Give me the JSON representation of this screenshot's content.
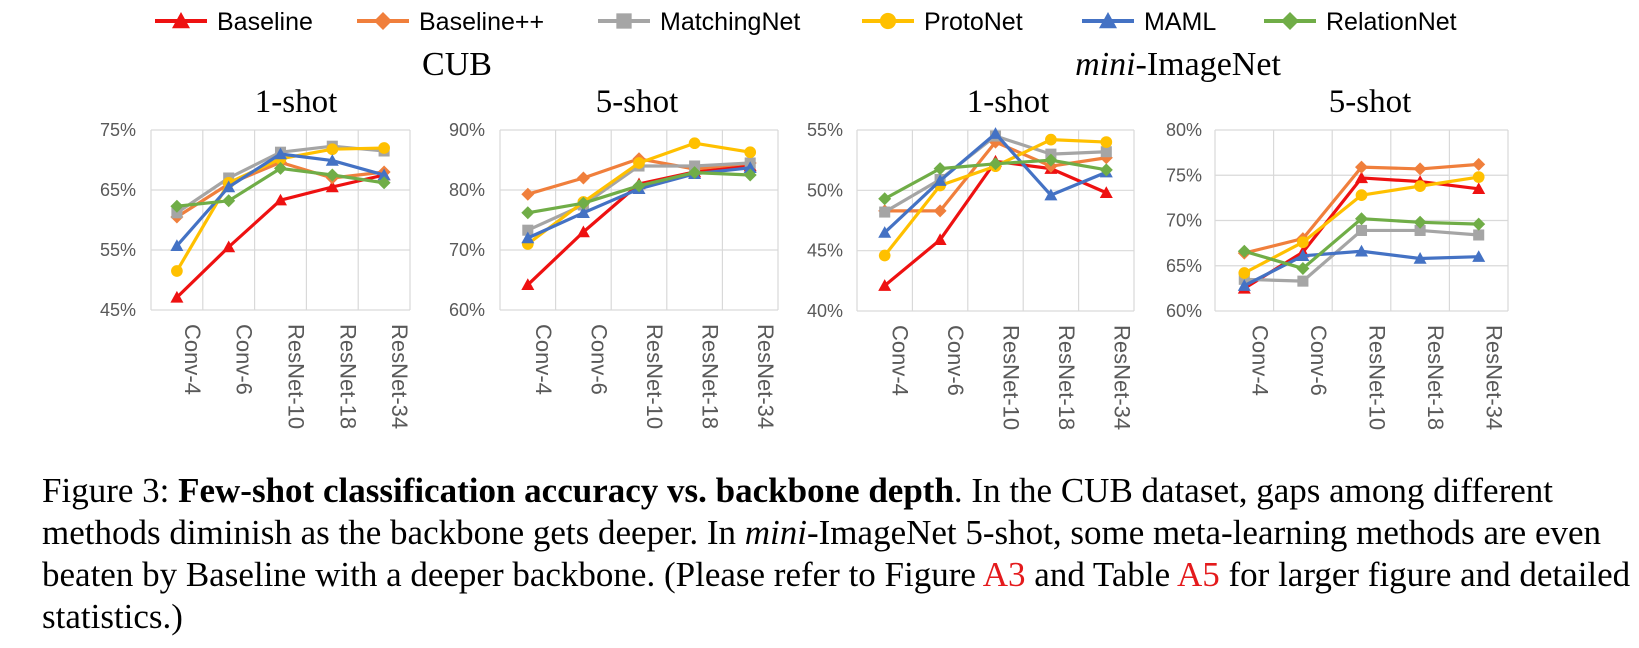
{
  "legend": [
    {
      "name": "Baseline",
      "color": "#ee1111",
      "marker": "triangle"
    },
    {
      "name": "Baseline++",
      "color": "#f07f3c",
      "marker": "diamond"
    },
    {
      "name": "MatchingNet",
      "color": "#a5a5a5",
      "marker": "square"
    },
    {
      "name": "ProtoNet",
      "color": "#ffc000",
      "marker": "circle"
    },
    {
      "name": "MAML",
      "color": "#4472c4",
      "marker": "triangle"
    },
    {
      "name": "RelationNet",
      "color": "#70ad47",
      "marker": "diamond"
    }
  ],
  "groups": [
    {
      "title_main": "CUB",
      "title_prefix": ""
    },
    {
      "title_main": "-ImageNet",
      "title_prefix": "mini"
    }
  ],
  "chart_data": [
    {
      "type": "line",
      "group": "CUB",
      "title": "1-shot",
      "categories": [
        "Conv-4",
        "Conv-6",
        "ResNet-10",
        "ResNet-18",
        "ResNet-34"
      ],
      "ylim": [
        45,
        75
      ],
      "yticks": [
        "45%",
        "55%",
        "65%",
        "75%"
      ],
      "ytick_values": [
        45,
        55,
        65,
        75
      ],
      "grid": true,
      "series": [
        {
          "name": "Baseline",
          "values": [
            47.1,
            55.5,
            63.3,
            65.5,
            67.5
          ]
        },
        {
          "name": "Baseline++",
          "values": [
            60.5,
            66.0,
            69.6,
            67.0,
            68.0
          ]
        },
        {
          "name": "MatchingNet",
          "values": [
            61.2,
            67.0,
            71.3,
            72.3,
            71.5
          ]
        },
        {
          "name": "ProtoNet",
          "values": [
            51.5,
            66.2,
            70.2,
            71.8,
            72.0
          ]
        },
        {
          "name": "MAML",
          "values": [
            55.7,
            65.5,
            71.0,
            69.9,
            67.5
          ]
        },
        {
          "name": "RelationNet",
          "values": [
            62.3,
            63.2,
            68.6,
            67.5,
            66.2
          ]
        }
      ]
    },
    {
      "type": "line",
      "group": "CUB",
      "title": "5-shot",
      "categories": [
        "Conv-4",
        "Conv-6",
        "ResNet-10",
        "ResNet-18",
        "ResNet-34"
      ],
      "ylim": [
        60,
        90
      ],
      "yticks": [
        "60%",
        "70%",
        "80%",
        "90%"
      ],
      "ytick_values": [
        60,
        70,
        80,
        90
      ],
      "grid": true,
      "series": [
        {
          "name": "Baseline",
          "values": [
            64.2,
            73.0,
            81.0,
            83.0,
            84.0
          ]
        },
        {
          "name": "Baseline++",
          "values": [
            79.3,
            82.0,
            85.2,
            83.5,
            84.5
          ]
        },
        {
          "name": "MatchingNet",
          "values": [
            73.3,
            77.5,
            84.0,
            84.0,
            84.5
          ]
        },
        {
          "name": "ProtoNet",
          "values": [
            71.0,
            78.0,
            84.5,
            87.8,
            86.3
          ]
        },
        {
          "name": "MAML",
          "values": [
            72.0,
            76.2,
            80.2,
            82.7,
            83.7
          ]
        },
        {
          "name": "RelationNet",
          "values": [
            76.2,
            77.8,
            80.7,
            82.9,
            82.5
          ]
        }
      ]
    },
    {
      "type": "line",
      "group": "mini-ImageNet",
      "title": "1-shot",
      "categories": [
        "Conv-4",
        "Conv-6",
        "ResNet-10",
        "ResNet-18",
        "ResNet-34"
      ],
      "ylim": [
        40,
        55
      ],
      "yticks": [
        "40%",
        "45%",
        "50%",
        "55%"
      ],
      "ytick_values": [
        40,
        45,
        50,
        55
      ],
      "grid": true,
      "series": [
        {
          "name": "Baseline",
          "values": [
            42.1,
            45.9,
            52.4,
            51.8,
            49.8
          ]
        },
        {
          "name": "Baseline++",
          "values": [
            48.3,
            48.3,
            54.0,
            52.0,
            52.7
          ]
        },
        {
          "name": "MatchingNet",
          "values": [
            48.2,
            50.9,
            54.5,
            53.0,
            53.2
          ]
        },
        {
          "name": "ProtoNet",
          "values": [
            44.6,
            50.4,
            52.0,
            54.2,
            54.0
          ]
        },
        {
          "name": "MAML",
          "values": [
            46.5,
            50.8,
            54.7,
            49.6,
            51.5
          ]
        },
        {
          "name": "RelationNet",
          "values": [
            49.3,
            51.8,
            52.2,
            52.5,
            51.7
          ]
        }
      ]
    },
    {
      "type": "line",
      "group": "mini-ImageNet",
      "title": "5-shot",
      "categories": [
        "Conv-4",
        "Conv-6",
        "ResNet-10",
        "ResNet-18",
        "ResNet-34"
      ],
      "ylim": [
        60,
        80
      ],
      "yticks": [
        "60%",
        "65%",
        "70%",
        "75%",
        "80%"
      ],
      "ytick_values": [
        60,
        65,
        70,
        75,
        80
      ],
      "grid": true,
      "series": [
        {
          "name": "Baseline",
          "values": [
            62.5,
            66.5,
            74.7,
            74.3,
            73.5
          ]
        },
        {
          "name": "Baseline++",
          "values": [
            66.4,
            68.0,
            75.9,
            75.7,
            76.2
          ]
        },
        {
          "name": "MatchingNet",
          "values": [
            63.5,
            63.3,
            68.9,
            68.9,
            68.4
          ]
        },
        {
          "name": "ProtoNet",
          "values": [
            64.2,
            67.6,
            72.8,
            73.8,
            74.8
          ]
        },
        {
          "name": "MAML",
          "values": [
            62.8,
            66.1,
            66.6,
            65.8,
            66.0
          ]
        },
        {
          "name": "RelationNet",
          "values": [
            66.6,
            64.7,
            70.2,
            69.8,
            69.6
          ]
        }
      ]
    }
  ],
  "caption": {
    "label": "Figure 3:",
    "bold": "Few-shot classification accuracy vs. backbone depth",
    "text1": ". In the CUB dataset, gaps among different methods diminish as the backbone gets deeper. In ",
    "ital": "mini",
    "text2": "-ImageNet 5-shot, some meta-learning methods are even beaten by Baseline with a deeper backbone. (Please refer to Figure ",
    "ref1": "A3",
    "text3": " and Table ",
    "ref2": "A5",
    "text4": " for larger figure and detailed statistics.)"
  }
}
